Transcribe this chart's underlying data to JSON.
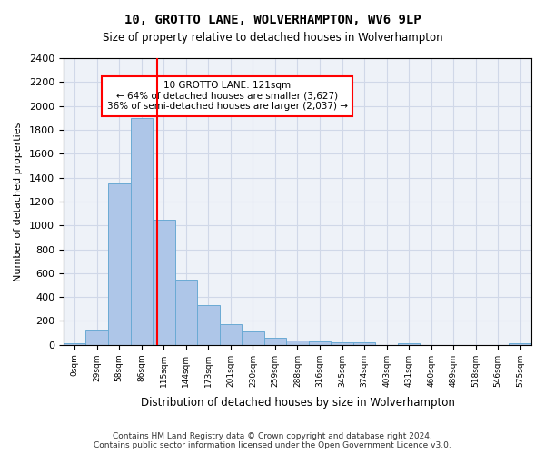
{
  "title": "10, GROTTO LANE, WOLVERHAMPTON, WV6 9LP",
  "subtitle": "Size of property relative to detached houses in Wolverhampton",
  "xlabel": "Distribution of detached houses by size in Wolverhampton",
  "ylabel": "Number of detached properties",
  "footer": "Contains HM Land Registry data © Crown copyright and database right 2024.\nContains public sector information licensed under the Open Government Licence v3.0.",
  "bin_labels": [
    "0sqm",
    "29sqm",
    "58sqm",
    "86sqm",
    "115sqm",
    "144sqm",
    "173sqm",
    "201sqm",
    "230sqm",
    "259sqm",
    "288sqm",
    "316sqm",
    "345sqm",
    "374sqm",
    "403sqm",
    "431sqm",
    "460sqm",
    "489sqm",
    "518sqm",
    "546sqm",
    "575sqm"
  ],
  "bar_heights": [
    15,
    125,
    1350,
    1900,
    1050,
    545,
    335,
    170,
    110,
    62,
    40,
    30,
    25,
    20,
    0,
    15,
    0,
    0,
    0,
    0,
    15
  ],
  "bar_color": "#aec6e8",
  "bar_edge_color": "#6aaad4",
  "property_size": 121,
  "property_size_bin_index": 4,
  "vline_x": 121,
  "vline_color": "red",
  "annotation_text": "10 GROTTO LANE: 121sqm\n← 64% of detached houses are smaller (3,627)\n36% of semi-detached houses are larger (2,037) →",
  "annotation_box_color": "white",
  "annotation_box_edge": "red",
  "ylim": [
    0,
    2400
  ],
  "yticks": [
    0,
    200,
    400,
    600,
    800,
    1000,
    1200,
    1400,
    1600,
    1800,
    2000,
    2200,
    2400
  ],
  "grid_color": "#d0d8e8",
  "background_color": "#eef2f8"
}
